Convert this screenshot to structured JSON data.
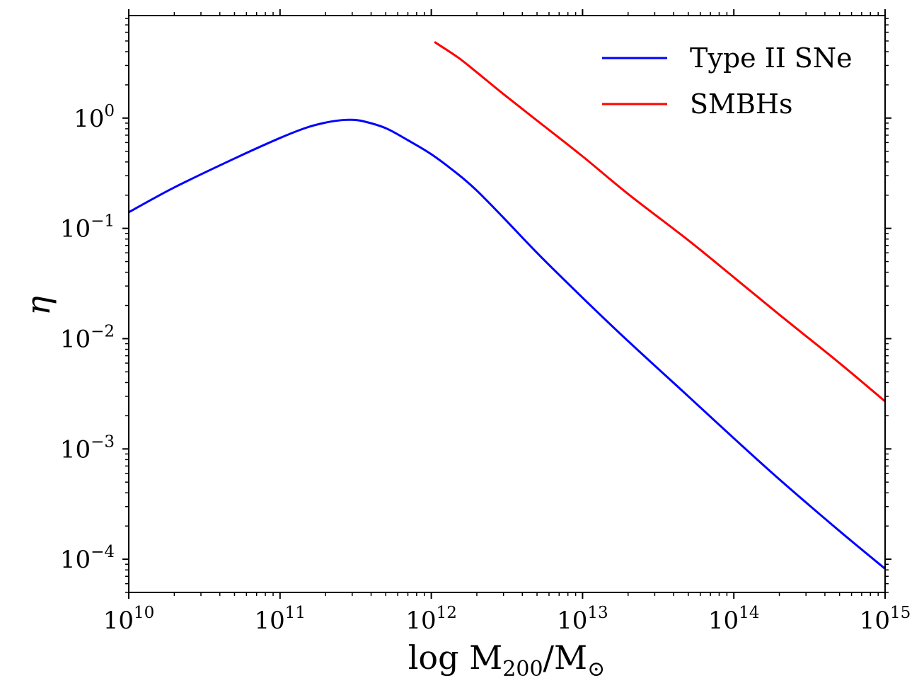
{
  "chart_data": {
    "type": "line",
    "xscale": "log",
    "yscale": "log",
    "xlim": [
      10000000000.0,
      1000000000000000.0
    ],
    "ylim": [
      5e-05,
      8.5
    ],
    "xlabel": {
      "main": "log M",
      "sub": "200",
      "tail": "/M",
      "tail_sub": "⊙"
    },
    "ylabel": "η",
    "legend_position": "top-right",
    "x_ticks": [
      {
        "base": "10",
        "exp": "10",
        "value": 10000000000.0
      },
      {
        "base": "10",
        "exp": "11",
        "value": 100000000000.0
      },
      {
        "base": "10",
        "exp": "12",
        "value": 1000000000000.0
      },
      {
        "base": "10",
        "exp": "13",
        "value": 10000000000000.0
      },
      {
        "base": "10",
        "exp": "14",
        "value": 100000000000000.0
      },
      {
        "base": "10",
        "exp": "15",
        "value": 1000000000000000.0
      }
    ],
    "y_ticks": [
      {
        "base": "10",
        "exp": "0",
        "value": 1
      },
      {
        "base": "10",
        "exp": "−1",
        "value": 0.1
      },
      {
        "base": "10",
        "exp": "−2",
        "value": 0.01
      },
      {
        "base": "10",
        "exp": "−3",
        "value": 0.001
      },
      {
        "base": "10",
        "exp": "−4",
        "value": 0.0001
      }
    ],
    "series": [
      {
        "name": "Type II SNe",
        "color": "#0000ff",
        "x": [
          10000000000.0,
          20000000000.0,
          50000000000.0,
          100000000000.0,
          150000000000.0,
          200000000000.0,
          250000000000.0,
          290000000000.0,
          350000000000.0,
          500000000000.0,
          700000000000.0,
          1000000000000.0,
          1500000000000.0,
          2000000000000.0,
          3000000000000.0,
          5000000000000.0,
          10000000000000.0,
          20000000000000.0,
          50000000000000.0,
          100000000000000.0,
          200000000000000.0,
          500000000000000.0,
          1000000000000000.0
        ],
        "values": [
          0.14,
          0.235,
          0.43,
          0.66,
          0.82,
          0.91,
          0.955,
          0.965,
          0.94,
          0.81,
          0.63,
          0.47,
          0.31,
          0.22,
          0.125,
          0.06,
          0.0235,
          0.0095,
          0.003,
          0.00125,
          0.00053,
          0.00018,
          8.2e-05
        ]
      },
      {
        "name": "SMBHs",
        "color": "#ff0000",
        "x": [
          1050000000000.0,
          1500000000000.0,
          2000000000000.0,
          3000000000000.0,
          5000000000000.0,
          10000000000000.0,
          20000000000000.0,
          50000000000000.0,
          100000000000000.0,
          200000000000000.0,
          500000000000000.0,
          1000000000000000.0
        ],
        "values": [
          4.9,
          3.55,
          2.6,
          1.65,
          0.95,
          0.45,
          0.205,
          0.078,
          0.036,
          0.0165,
          0.006,
          0.0027
        ]
      }
    ]
  }
}
